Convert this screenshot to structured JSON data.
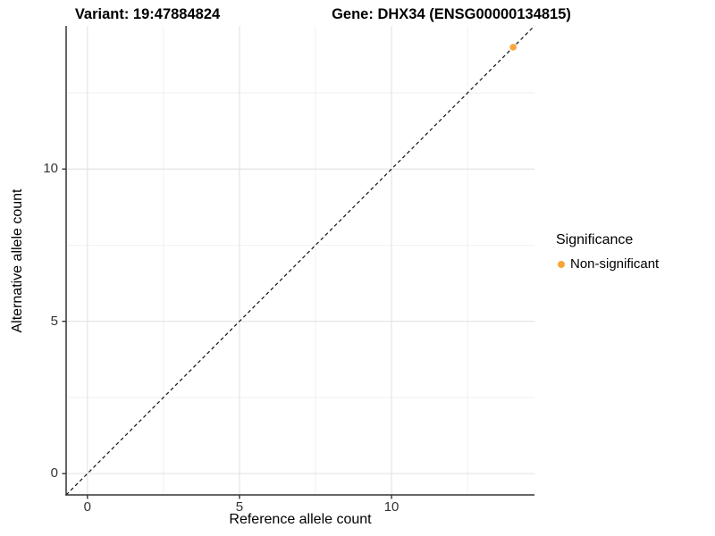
{
  "header": {
    "variant_title": "Variant: 19:47884824",
    "gene_title": "Gene: DHX34 (ENSG00000134815)"
  },
  "legend": {
    "title": "Significance",
    "items": [
      {
        "label": "Non-significant",
        "color": "#FAA53C"
      }
    ]
  },
  "colors": {
    "background": "#FFFFFF",
    "grid_major": "#E2E2E2",
    "grid_minor": "#EFEFEF",
    "axis_line": "#333333",
    "tick_mark": "#333333",
    "tick_label": "#333333",
    "reference_line": "#111111",
    "point": "#FAA53C"
  },
  "chart_data": {
    "type": "scatter",
    "title": "Variant: 19:47884824 | Gene: DHX34 (ENSG00000134815)",
    "xlabel": "Reference allele count",
    "ylabel": "Alternative allele count",
    "xlim": [
      -0.7,
      14.7
    ],
    "ylim": [
      -0.7,
      14.7
    ],
    "x_ticks": [
      0,
      5,
      10
    ],
    "y_ticks": [
      0,
      5,
      10
    ],
    "x_minor_ticks": [
      2.5,
      7.5,
      12.5
    ],
    "y_minor_ticks": [
      2.5,
      7.5,
      12.5
    ],
    "grid": "major and minor, light gray, white panel",
    "legend_position": "right",
    "series": [
      {
        "name": "Non-significant",
        "color": "#FAA53C",
        "points": [
          {
            "x": 14,
            "y": 14
          }
        ]
      }
    ],
    "reference_line": {
      "style": "dashed",
      "color": "#111111",
      "slope": 1,
      "intercept": 0,
      "description": "y = x identity line from panel corner to corner"
    }
  }
}
